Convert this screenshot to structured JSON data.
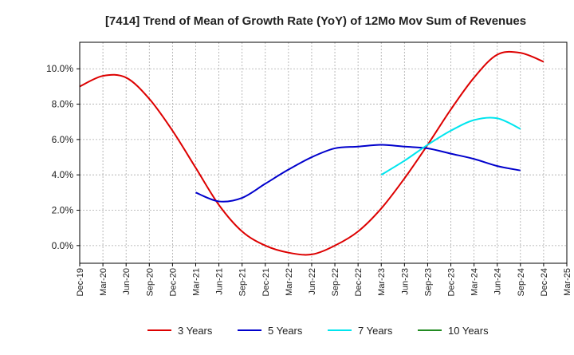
{
  "chart_data": {
    "type": "line",
    "title": "[7414]  Trend of Mean of Growth Rate (YoY) of 12Mo Mov Sum of Revenues",
    "xlabel": "",
    "ylabel": "",
    "x_tick_labels": [
      "Dec-19",
      "Mar-20",
      "Jun-20",
      "Sep-20",
      "Dec-20",
      "Mar-21",
      "Jun-21",
      "Sep-21",
      "Dec-21",
      "Mar-22",
      "Jun-22",
      "Sep-22",
      "Dec-22",
      "Mar-23",
      "Jun-23",
      "Sep-23",
      "Dec-23",
      "Mar-24",
      "Jun-24",
      "Sep-24",
      "Dec-24",
      "Mar-25"
    ],
    "y_ticks": [
      0,
      2,
      4,
      6,
      8,
      10
    ],
    "y_tick_labels": [
      "0.0%",
      "2.0%",
      "4.0%",
      "6.0%",
      "8.0%",
      "10.0%"
    ],
    "ylim": [
      -1.0,
      11.5
    ],
    "grid": true,
    "legend_position": "bottom",
    "series": [
      {
        "name": "3 Years",
        "color": "#dd0000",
        "start_index": 0,
        "values": [
          9.0,
          9.6,
          9.5,
          8.3,
          6.5,
          4.4,
          2.3,
          0.8,
          0.0,
          -0.4,
          -0.5,
          0.0,
          0.8,
          2.1,
          3.8,
          5.7,
          7.7,
          9.5,
          10.8,
          10.9,
          10.4
        ]
      },
      {
        "name": "5 Years",
        "color": "#0000cc",
        "start_index": 5,
        "values": [
          3.0,
          2.5,
          2.7,
          3.5,
          4.3,
          5.0,
          5.5,
          5.6,
          5.7,
          5.6,
          5.5,
          5.2,
          4.9,
          4.5,
          4.25
        ]
      },
      {
        "name": "7 Years",
        "color": "#00e5ee",
        "start_index": 13,
        "values": [
          4.0,
          4.8,
          5.7,
          6.5,
          7.1,
          7.2,
          6.6
        ]
      },
      {
        "name": "10 Years",
        "color": "#228b22",
        "start_index": 0,
        "values": []
      }
    ]
  }
}
